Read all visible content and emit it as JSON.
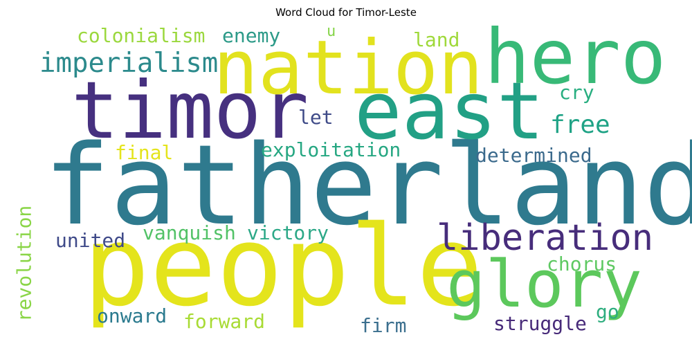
{
  "title": "Word Cloud for Timor-Leste",
  "words": [
    {
      "text": "fatherland",
      "color": "#2f7a8e"
    },
    {
      "text": "people",
      "color": "#e4e41c"
    },
    {
      "text": "timor",
      "color": "#46307f"
    },
    {
      "text": "nation",
      "color": "#e2e21e"
    },
    {
      "text": "east",
      "color": "#22a085"
    },
    {
      "text": "hero",
      "color": "#38b977"
    },
    {
      "text": "glory",
      "color": "#5cc85c"
    },
    {
      "text": "liberation",
      "color": "#472d7b"
    },
    {
      "text": "imperialism",
      "color": "#2c8a8c"
    },
    {
      "text": "colonialism",
      "color": "#9bd83e"
    },
    {
      "text": "enemy",
      "color": "#2c9a88"
    },
    {
      "text": "land",
      "color": "#9fd93a"
    },
    {
      "text": "u",
      "color": "#86d44a"
    },
    {
      "text": "cry",
      "color": "#28ae80"
    },
    {
      "text": "free",
      "color": "#20a386"
    },
    {
      "text": "let",
      "color": "#3f4b88"
    },
    {
      "text": "exploitation",
      "color": "#26a782"
    },
    {
      "text": "final",
      "color": "#e4e41c"
    },
    {
      "text": "determined",
      "color": "#3b6a8c"
    },
    {
      "text": "united",
      "color": "#3f4a89"
    },
    {
      "text": "vanquish",
      "color": "#52c267"
    },
    {
      "text": "victory",
      "color": "#2ca887"
    },
    {
      "text": "revolution",
      "color": "#8ad547"
    },
    {
      "text": "chorus",
      "color": "#5ec962"
    },
    {
      "text": "onward",
      "color": "#2a7a8e"
    },
    {
      "text": "forward",
      "color": "#a8db34"
    },
    {
      "text": "firm",
      "color": "#3b6f8e"
    },
    {
      "text": "struggle",
      "color": "#472a79"
    },
    {
      "text": "go",
      "color": "#2fae7f"
    }
  ]
}
